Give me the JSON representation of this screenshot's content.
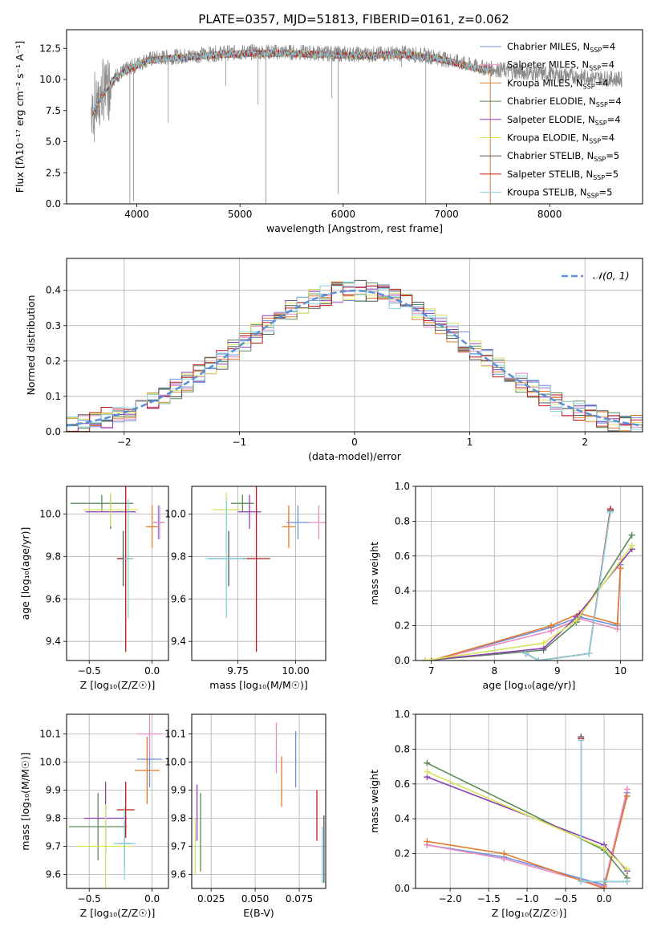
{
  "figure_title": "PLATE=0357, MJD=51813, FIBERID=0161, z=0.062",
  "colors": {
    "chab_miles": "#6f8fdb",
    "salp_miles": "#e98cc3",
    "krou_miles": "#e07b2e",
    "chab_elodie": "#5b8a5b",
    "salp_elodie": "#8b3fb0",
    "krou_elodie": "#d7e35a",
    "chab_stelib": "#555555",
    "salp_stelib": "#c01818",
    "krou_stelib": "#88d3e0",
    "data": "#8a8a8a",
    "gauss": "#5b8fd6"
  },
  "chart_data": [
    {
      "id": "spectrum",
      "type": "line",
      "title": "PLATE=0357, MJD=51813, FIBERID=0161, z=0.062",
      "xlabel": "wavelength [Angstrom, rest frame]",
      "ylabel": "Flux [f$_\\lambda$10$^{-17}$ erg cm$^{-2}$ s$^{-1}$ A$^{-1}$]",
      "ylabel_display": "Flux [fλ10⁻¹⁷ erg cm⁻² s⁻¹ A⁻¹]",
      "xlim": [
        3320,
        8900
      ],
      "ylim": [
        0,
        14
      ],
      "xticks": [
        4000,
        5000,
        6000,
        7000,
        8000
      ],
      "yticks": [
        0.0,
        2.5,
        5.0,
        7.5,
        10.0,
        12.5
      ],
      "grid": false,
      "legend_position": "right",
      "legend": [
        {
          "label": "Chabrier MILES, N",
          "sub": "SSP",
          "post": "=4",
          "color_key": "chab_miles"
        },
        {
          "label": "Salpeter MILES, N",
          "sub": "SSP",
          "post": "=4",
          "color_key": "salp_miles"
        },
        {
          "label": "Kroupa MILES, N",
          "sub": "SSP",
          "post": "=4",
          "color_key": "krou_miles"
        },
        {
          "label": "Chabrier ELODIE, N",
          "sub": "SSP",
          "post": "=4",
          "color_key": "chab_elodie"
        },
        {
          "label": "Salpeter ELODIE, N",
          "sub": "SSP",
          "post": "=4",
          "color_key": "salp_elodie"
        },
        {
          "label": "Kroupa ELODIE, N",
          "sub": "SSP",
          "post": "=4",
          "color_key": "krou_elodie"
        },
        {
          "label": "Chabrier STELIB, N",
          "sub": "SSP",
          "post": "=5",
          "color_key": "chab_stelib"
        },
        {
          "label": "Salpeter STELIB, N",
          "sub": "SSP",
          "post": "=5",
          "color_key": "salp_stelib"
        },
        {
          "label": "Kroupa STELIB, N",
          "sub": "SSP",
          "post": "=5",
          "color_key": "krou_stelib"
        }
      ],
      "continuum_anchor_points": [
        [
          3580,
          7.5
        ],
        [
          3700,
          9.3
        ],
        [
          3800,
          10.3
        ],
        [
          3950,
          11.0
        ],
        [
          4100,
          11.6
        ],
        [
          4300,
          11.8
        ],
        [
          4500,
          11.9
        ],
        [
          4800,
          12.1
        ],
        [
          5100,
          12.2
        ],
        [
          5400,
          12.2
        ],
        [
          5800,
          12.1
        ],
        [
          6200,
          12.0
        ],
        [
          6600,
          12.1
        ],
        [
          6900,
          11.8
        ],
        [
          7300,
          11.0
        ],
        [
          7700,
          10.6
        ],
        [
          8200,
          10.3
        ],
        [
          8700,
          10.0
        ]
      ],
      "model_extent_x": [
        3560,
        7430
      ],
      "data_extent_x": [
        3560,
        8700
      ]
    },
    {
      "id": "residual-hist",
      "type": "histogram",
      "xlabel": "(data-model)/error",
      "ylabel": "Normed distribution",
      "xlim": [
        -2.5,
        2.5
      ],
      "ylim": [
        0,
        0.49
      ],
      "xticks": [
        -2,
        -1,
        0,
        1,
        2
      ],
      "yticks": [
        0.0,
        0.1,
        0.2,
        0.3,
        0.4
      ],
      "grid": true,
      "legend_position": "top-right",
      "legend": [
        {
          "label": "𝒩(0, 1)",
          "color_key": "gauss",
          "style": "dashed"
        }
      ],
      "bin_width": 0.1,
      "gaussian": {
        "mean": 0,
        "sigma": 1
      }
    },
    {
      "id": "z-age",
      "type": "errorbar",
      "xlabel": "Z [log₁₀(Z/Z☉)]",
      "ylabel": "age  [log₁₀(age/yr)]",
      "xlim": [
        -0.68,
        0.13
      ],
      "ylim": [
        9.31,
        10.13
      ],
      "xticks": [
        -0.5,
        0.0
      ],
      "yticks": [
        9.4,
        9.6,
        9.8,
        10.0
      ],
      "grid": true,
      "points": [
        {
          "x": 0.05,
          "y": 9.96,
          "xerr": 0.04,
          "yerr": 0.08,
          "color_key": "chab_miles"
        },
        {
          "x": 0.06,
          "y": 9.96,
          "xerr": 0.04,
          "yerr": 0.08,
          "color_key": "salp_miles"
        },
        {
          "x": 0.0,
          "y": 9.94,
          "xerr": 0.05,
          "yerr": 0.1,
          "color_key": "krou_miles"
        },
        {
          "x": -0.4,
          "y": 10.05,
          "xerr": 0.25,
          "yerr": 0.04,
          "color_key": "chab_elodie"
        },
        {
          "x": -0.33,
          "y": 10.01,
          "xerr": 0.2,
          "yerr": 0.08,
          "color_key": "salp_elodie"
        },
        {
          "x": -0.33,
          "y": 10.02,
          "xerr": 0.22,
          "yerr": 0.08,
          "color_key": "krou_elodie"
        },
        {
          "x": -0.23,
          "y": 9.79,
          "xerr": 0.05,
          "yerr": 0.13,
          "color_key": "chab_stelib"
        },
        {
          "x": -0.21,
          "y": 9.79,
          "xerr": 0.06,
          "yerr": 0.44,
          "color_key": "salp_stelib"
        },
        {
          "x": -0.19,
          "y": 9.79,
          "xerr": 0.04,
          "yerr": 0.28,
          "color_key": "krou_stelib"
        }
      ]
    },
    {
      "id": "mass-age",
      "type": "errorbar",
      "xlabel": "mass [log₁₀(M/M☉)]",
      "ylabel": "",
      "xlim": [
        9.55,
        10.13
      ],
      "ylim": [
        9.31,
        10.13
      ],
      "xticks": [
        9.75,
        10.0
      ],
      "yticks": [
        9.4,
        9.6,
        9.8,
        10.0
      ],
      "grid": true,
      "points": [
        {
          "x": 10.01,
          "y": 9.96,
          "xerr": 0.05,
          "yerr": 0.08,
          "color_key": "chab_miles"
        },
        {
          "x": 10.1,
          "y": 9.96,
          "xerr": 0.04,
          "yerr": 0.08,
          "color_key": "salp_miles"
        },
        {
          "x": 9.97,
          "y": 9.94,
          "xerr": 0.03,
          "yerr": 0.1,
          "color_key": "krou_miles"
        },
        {
          "x": 9.77,
          "y": 10.05,
          "xerr": 0.05,
          "yerr": 0.04,
          "color_key": "chab_elodie"
        },
        {
          "x": 9.8,
          "y": 10.01,
          "xerr": 0.05,
          "yerr": 0.08,
          "color_key": "salp_elodie"
        },
        {
          "x": 9.7,
          "y": 10.02,
          "xerr": 0.06,
          "yerr": 0.08,
          "color_key": "krou_elodie"
        },
        {
          "x": 9.71,
          "y": 9.79,
          "xerr": 0.09,
          "yerr": 0.13,
          "color_key": "chab_stelib"
        },
        {
          "x": 9.83,
          "y": 9.79,
          "xerr": 0.06,
          "yerr": 0.44,
          "color_key": "salp_stelib"
        },
        {
          "x": 9.7,
          "y": 9.79,
          "xerr": 0.09,
          "yerr": 0.28,
          "color_key": "krou_stelib"
        }
      ]
    },
    {
      "id": "weight-age",
      "type": "line",
      "xlabel": "age  [log₁₀(age/yr)]",
      "ylabel": "mass weight",
      "xlim": [
        6.75,
        10.35
      ],
      "ylim": [
        0,
        1.0
      ],
      "xticks": [
        7,
        8,
        9,
        10
      ],
      "yticks": [
        0.0,
        0.2,
        0.4,
        0.6,
        0.8,
        1.0
      ],
      "grid": true,
      "series": [
        {
          "color_key": "chab_miles",
          "x": [
            7.0,
            8.9,
            9.35,
            9.95,
            10.0
          ],
          "y": [
            0.0,
            0.19,
            0.25,
            0.2,
            0.55
          ]
        },
        {
          "color_key": "salp_miles",
          "x": [
            7.0,
            8.9,
            9.35,
            9.95,
            10.0
          ],
          "y": [
            0.0,
            0.17,
            0.24,
            0.18,
            0.58
          ]
        },
        {
          "color_key": "krou_miles",
          "x": [
            7.0,
            8.9,
            9.35,
            9.95,
            10.0
          ],
          "y": [
            0.0,
            0.2,
            0.27,
            0.21,
            0.53
          ]
        },
        {
          "color_key": "chab_elodie",
          "x": [
            6.9,
            8.78,
            9.3,
            10.18
          ],
          "y": [
            0.0,
            0.06,
            0.22,
            0.72
          ]
        },
        {
          "color_key": "salp_elodie",
          "x": [
            6.9,
            8.78,
            9.3,
            10.18
          ],
          "y": [
            0.0,
            0.07,
            0.25,
            0.64
          ]
        },
        {
          "color_key": "krou_elodie",
          "x": [
            6.9,
            8.78,
            9.3,
            10.18
          ],
          "y": [
            0.0,
            0.1,
            0.23,
            0.66
          ]
        },
        {
          "color_key": "chab_stelib",
          "x": [
            8.5,
            8.7,
            9.5,
            9.84
          ],
          "y": [
            0.04,
            0.0,
            0.04,
            0.86
          ]
        },
        {
          "color_key": "salp_stelib",
          "x": [
            8.5,
            8.7,
            9.5,
            9.84
          ],
          "y": [
            0.04,
            0.0,
            0.04,
            0.87
          ]
        },
        {
          "color_key": "krou_stelib",
          "x": [
            8.5,
            8.7,
            9.5,
            9.84
          ],
          "y": [
            0.04,
            0.0,
            0.04,
            0.85
          ]
        }
      ]
    },
    {
      "id": "z-mass",
      "type": "errorbar",
      "xlabel": "Z [log₁₀(Z/Z☉)]",
      "ylabel": "mass [log₁₀(M/M☉)]",
      "xlim": [
        -0.68,
        0.13
      ],
      "ylim": [
        9.55,
        10.17
      ],
      "xticks": [
        -0.5,
        0.0
      ],
      "yticks": [
        9.6,
        9.7,
        9.8,
        9.9,
        10.0,
        10.1
      ],
      "grid": true,
      "points": [
        {
          "x": -0.02,
          "y": 10.01,
          "xerr": 0.1,
          "yerr": 0.1,
          "color_key": "chab_miles"
        },
        {
          "x": -0.02,
          "y": 10.1,
          "xerr": 0.1,
          "yerr": 0.08,
          "color_key": "salp_miles"
        },
        {
          "x": -0.04,
          "y": 9.97,
          "xerr": 0.1,
          "yerr": 0.12,
          "color_key": "krou_miles"
        },
        {
          "x": -0.43,
          "y": 9.77,
          "xerr": 0.23,
          "yerr": 0.12,
          "color_key": "chab_elodie"
        },
        {
          "x": -0.37,
          "y": 9.8,
          "xerr": 0.17,
          "yerr": 0.13,
          "color_key": "salp_elodie"
        },
        {
          "x": -0.37,
          "y": 9.7,
          "xerr": 0.22,
          "yerr": 0.15,
          "color_key": "krou_elodie"
        },
        {
          "x": -0.22,
          "y": 9.71,
          "xerr": 0.05,
          "yerr": 0.08,
          "color_key": "chab_stelib"
        },
        {
          "x": -0.21,
          "y": 9.83,
          "xerr": 0.07,
          "yerr": 0.1,
          "color_key": "salp_stelib"
        },
        {
          "x": -0.22,
          "y": 9.71,
          "xerr": 0.09,
          "yerr": 0.13,
          "color_key": "krou_stelib"
        }
      ]
    },
    {
      "id": "ebv-mass",
      "type": "errorbar",
      "xlabel": "E(B-V)",
      "ylabel": "",
      "xlim": [
        0.014,
        0.09
      ],
      "ylim": [
        9.55,
        10.17
      ],
      "xticks": [
        0.025,
        0.05,
        0.075
      ],
      "xticklabels": [
        "0.025",
        "0.050",
        "0.075"
      ],
      "yticks": [
        9.6,
        9.7,
        9.8,
        9.9,
        10.0,
        10.1
      ],
      "grid": true,
      "points": [
        {
          "x": 0.073,
          "y": 10.01,
          "xerr": 0,
          "yerr": 0.1,
          "color_key": "chab_miles"
        },
        {
          "x": 0.062,
          "y": 10.05,
          "xerr": 0,
          "yerr": 0.09,
          "color_key": "salp_miles"
        },
        {
          "x": 0.065,
          "y": 9.93,
          "xerr": 0,
          "yerr": 0.09,
          "color_key": "krou_miles"
        },
        {
          "x": 0.019,
          "y": 9.75,
          "xerr": 0,
          "yerr": 0.14,
          "color_key": "chab_elodie"
        },
        {
          "x": 0.017,
          "y": 9.82,
          "xerr": 0,
          "yerr": 0.1,
          "color_key": "salp_elodie"
        },
        {
          "x": 0.016,
          "y": 9.7,
          "xerr": 0,
          "yerr": 0.1,
          "color_key": "krou_elodie"
        },
        {
          "x": 0.089,
          "y": 9.69,
          "xerr": 0,
          "yerr": 0.12,
          "color_key": "chab_stelib"
        },
        {
          "x": 0.085,
          "y": 9.81,
          "xerr": 0,
          "yerr": 0.09,
          "color_key": "salp_stelib"
        },
        {
          "x": 0.088,
          "y": 9.67,
          "xerr": 0,
          "yerr": 0.1,
          "color_key": "krou_stelib"
        }
      ]
    },
    {
      "id": "weight-z",
      "type": "line",
      "xlabel": "Z [log₁₀(Z/Z☉)]",
      "ylabel": "mass weight",
      "xlim": [
        -2.45,
        0.5
      ],
      "ylim": [
        0,
        1.0
      ],
      "xticks": [
        -2.0,
        -1.5,
        -1.0,
        -0.5,
        0.0
      ],
      "yticks": [
        0.0,
        0.2,
        0.4,
        0.6,
        0.8,
        1.0
      ],
      "grid": true,
      "series": [
        {
          "color_key": "chab_miles",
          "x": [
            -2.3,
            -1.3,
            0.0,
            0.3
          ],
          "y": [
            0.25,
            0.18,
            0.02,
            0.55
          ]
        },
        {
          "color_key": "salp_miles",
          "x": [
            -2.3,
            -1.3,
            0.0,
            0.3
          ],
          "y": [
            0.25,
            0.17,
            0.01,
            0.57
          ]
        },
        {
          "color_key": "krou_miles",
          "x": [
            -2.3,
            -1.3,
            0.0,
            0.3
          ],
          "y": [
            0.27,
            0.2,
            0.0,
            0.53
          ]
        },
        {
          "color_key": "chab_elodie",
          "x": [
            -2.3,
            0.0,
            0.3
          ],
          "y": [
            0.72,
            0.22,
            0.06
          ]
        },
        {
          "color_key": "salp_elodie",
          "x": [
            -2.3,
            0.0,
            0.3
          ],
          "y": [
            0.64,
            0.25,
            0.1
          ]
        },
        {
          "color_key": "krou_elodie",
          "x": [
            -2.3,
            0.0,
            0.3
          ],
          "y": [
            0.67,
            0.23,
            0.11
          ]
        },
        {
          "color_key": "chab_stelib",
          "x": [
            -0.3,
            -0.3,
            0.0,
            0.3
          ],
          "y": [
            0.87,
            0.04,
            0.04,
            0.04
          ]
        },
        {
          "color_key": "salp_stelib",
          "x": [
            -0.3,
            -0.3,
            0.0,
            0.3
          ],
          "y": [
            0.86,
            0.04,
            0.04,
            0.04
          ]
        },
        {
          "color_key": "krou_stelib",
          "x": [
            -0.3,
            -0.3,
            0.0,
            0.3
          ],
          "y": [
            0.85,
            0.04,
            0.04,
            0.04
          ]
        }
      ]
    }
  ]
}
